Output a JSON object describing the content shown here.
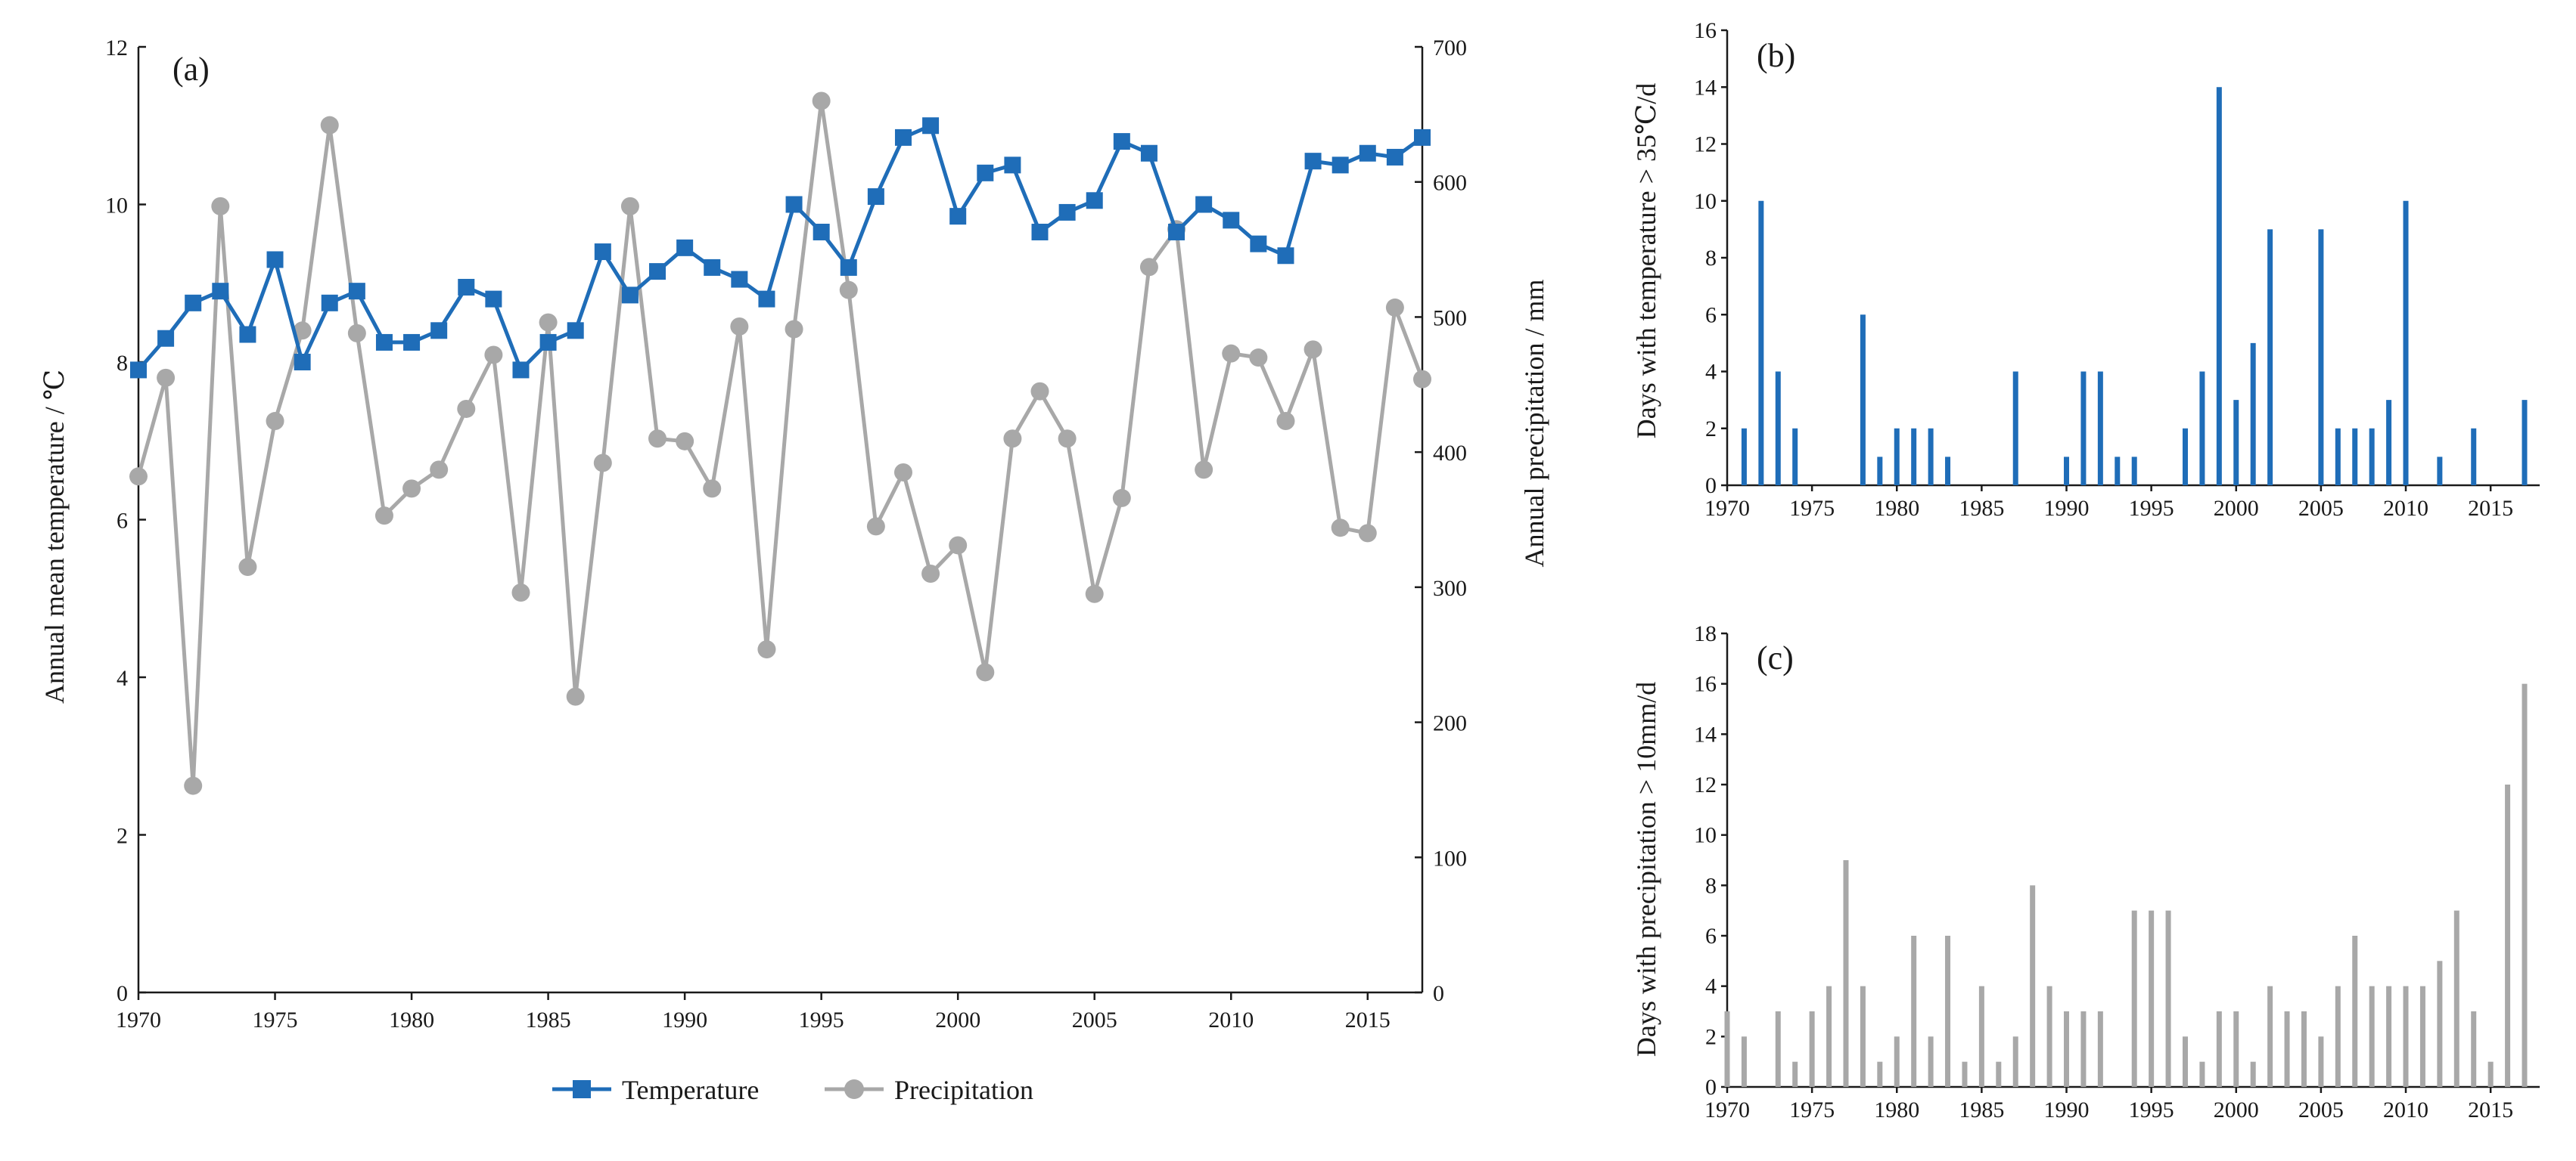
{
  "chart_data": [
    {
      "id": "a",
      "panel_label": "(a)",
      "type": "line",
      "x": [
        1970,
        1971,
        1972,
        1973,
        1974,
        1975,
        1976,
        1977,
        1978,
        1979,
        1980,
        1981,
        1982,
        1983,
        1984,
        1985,
        1986,
        1987,
        1988,
        1989,
        1990,
        1991,
        1992,
        1993,
        1994,
        1995,
        1996,
        1997,
        1998,
        1999,
        2000,
        2001,
        2002,
        2003,
        2004,
        2005,
        2006,
        2007,
        2008,
        2009,
        2010,
        2011,
        2012,
        2013,
        2014,
        2015,
        2016,
        2017
      ],
      "xlim": [
        1970,
        2017
      ],
      "xticks": [
        "1970",
        "1975",
        "1980",
        "1985",
        "1990",
        "1995",
        "2000",
        "2005",
        "2010",
        "2015"
      ],
      "ylabel": "Annual mean temperature / ℃",
      "ylim": [
        0,
        12
      ],
      "yticks": [
        "0",
        "2",
        "4",
        "6",
        "8",
        "10",
        "12"
      ],
      "y2label": "Annual precipitation / mm",
      "y2lim": [
        0,
        700
      ],
      "y2ticks": [
        "0",
        "100",
        "200",
        "300",
        "400",
        "500",
        "600",
        "700"
      ],
      "legend_position": "bottom-center",
      "series": [
        {
          "name": "Temperature",
          "axis": "left",
          "marker": "square",
          "color": "#1f6db8",
          "values": [
            7.9,
            8.3,
            8.75,
            8.9,
            8.35,
            9.3,
            8.0,
            8.75,
            8.9,
            8.25,
            8.25,
            8.4,
            8.95,
            8.8,
            7.9,
            8.25,
            8.4,
            9.4,
            8.85,
            9.15,
            9.45,
            9.2,
            9.05,
            8.8,
            10.0,
            9.65,
            9.2,
            10.1,
            10.85,
            11.0,
            9.85,
            10.4,
            10.5,
            9.65,
            9.9,
            10.05,
            10.8,
            10.65,
            9.65,
            10.0,
            9.8,
            9.5,
            9.35,
            10.55,
            10.5,
            10.65,
            10.6,
            10.85
          ]
        },
        {
          "name": "Precipitation",
          "axis": "right",
          "marker": "circle",
          "color": "#a8a8a8",
          "values": [
            382,
            455,
            153,
            582,
            315,
            423,
            490,
            642,
            488,
            353,
            373,
            387,
            432,
            472,
            296,
            496,
            219,
            392,
            582,
            410,
            408,
            373,
            493,
            254,
            491,
            660,
            520,
            345,
            385,
            310,
            331,
            237,
            410,
            445,
            410,
            295,
            366,
            537,
            565,
            387,
            473,
            470,
            423,
            476,
            344,
            340,
            507,
            454
          ]
        }
      ]
    },
    {
      "id": "b",
      "panel_label": "(b)",
      "type": "bar",
      "x": [
        1970,
        1971,
        1972,
        1973,
        1974,
        1975,
        1976,
        1977,
        1978,
        1979,
        1980,
        1981,
        1982,
        1983,
        1984,
        1985,
        1986,
        1987,
        1988,
        1989,
        1990,
        1991,
        1992,
        1993,
        1994,
        1995,
        1996,
        1997,
        1998,
        1999,
        2000,
        2001,
        2002,
        2003,
        2004,
        2005,
        2006,
        2007,
        2008,
        2009,
        2010,
        2011,
        2012,
        2013,
        2014,
        2015,
        2016,
        2017
      ],
      "xlim": [
        1970,
        2017
      ],
      "xticks": [
        "1970",
        "1975",
        "1980",
        "1985",
        "1990",
        "1995",
        "2000",
        "2005",
        "2010",
        "2015"
      ],
      "ylabel": "Days with temperature > 35℃/d",
      "ylim": [
        0,
        16
      ],
      "yticks": [
        "0",
        "2",
        "4",
        "6",
        "8",
        "10",
        "12",
        "14",
        "16"
      ],
      "color": "#1f6db8",
      "values": [
        0,
        2,
        10,
        4,
        2,
        0,
        0,
        0,
        6,
        1,
        2,
        2,
        2,
        1,
        0,
        0,
        0,
        4,
        0,
        0,
        1,
        4,
        4,
        1,
        1,
        0,
        0,
        2,
        4,
        14,
        3,
        5,
        9,
        0,
        0,
        9,
        2,
        2,
        2,
        3,
        10,
        0,
        1,
        0,
        2,
        0,
        0,
        3
      ]
    },
    {
      "id": "c",
      "panel_label": "(c)",
      "type": "bar",
      "x": [
        1970,
        1971,
        1972,
        1973,
        1974,
        1975,
        1976,
        1977,
        1978,
        1979,
        1980,
        1981,
        1982,
        1983,
        1984,
        1985,
        1986,
        1987,
        1988,
        1989,
        1990,
        1991,
        1992,
        1993,
        1994,
        1995,
        1996,
        1997,
        1998,
        1999,
        2000,
        2001,
        2002,
        2003,
        2004,
        2005,
        2006,
        2007,
        2008,
        2009,
        2010,
        2011,
        2012,
        2013,
        2014,
        2015,
        2016,
        2017
      ],
      "xlim": [
        1970,
        2017
      ],
      "xticks": [
        "1970",
        "1975",
        "1980",
        "1985",
        "1990",
        "1995",
        "2000",
        "2005",
        "2010",
        "2015"
      ],
      "ylabel": "Days with precipitation > 10mm/d",
      "ylim": [
        0,
        18
      ],
      "yticks": [
        "0",
        "2",
        "4",
        "6",
        "8",
        "10",
        "12",
        "14",
        "16",
        "18"
      ],
      "color": "#a8a8a8",
      "values": [
        3,
        2,
        0,
        3,
        1,
        3,
        4,
        9,
        4,
        1,
        2,
        6,
        2,
        6,
        1,
        4,
        1,
        2,
        8,
        4,
        3,
        3,
        3,
        0,
        7,
        7,
        7,
        2,
        1,
        3,
        3,
        1,
        4,
        3,
        3,
        2,
        4,
        6,
        4,
        4,
        4,
        4,
        5,
        7,
        3,
        1,
        12,
        16
      ]
    }
  ]
}
